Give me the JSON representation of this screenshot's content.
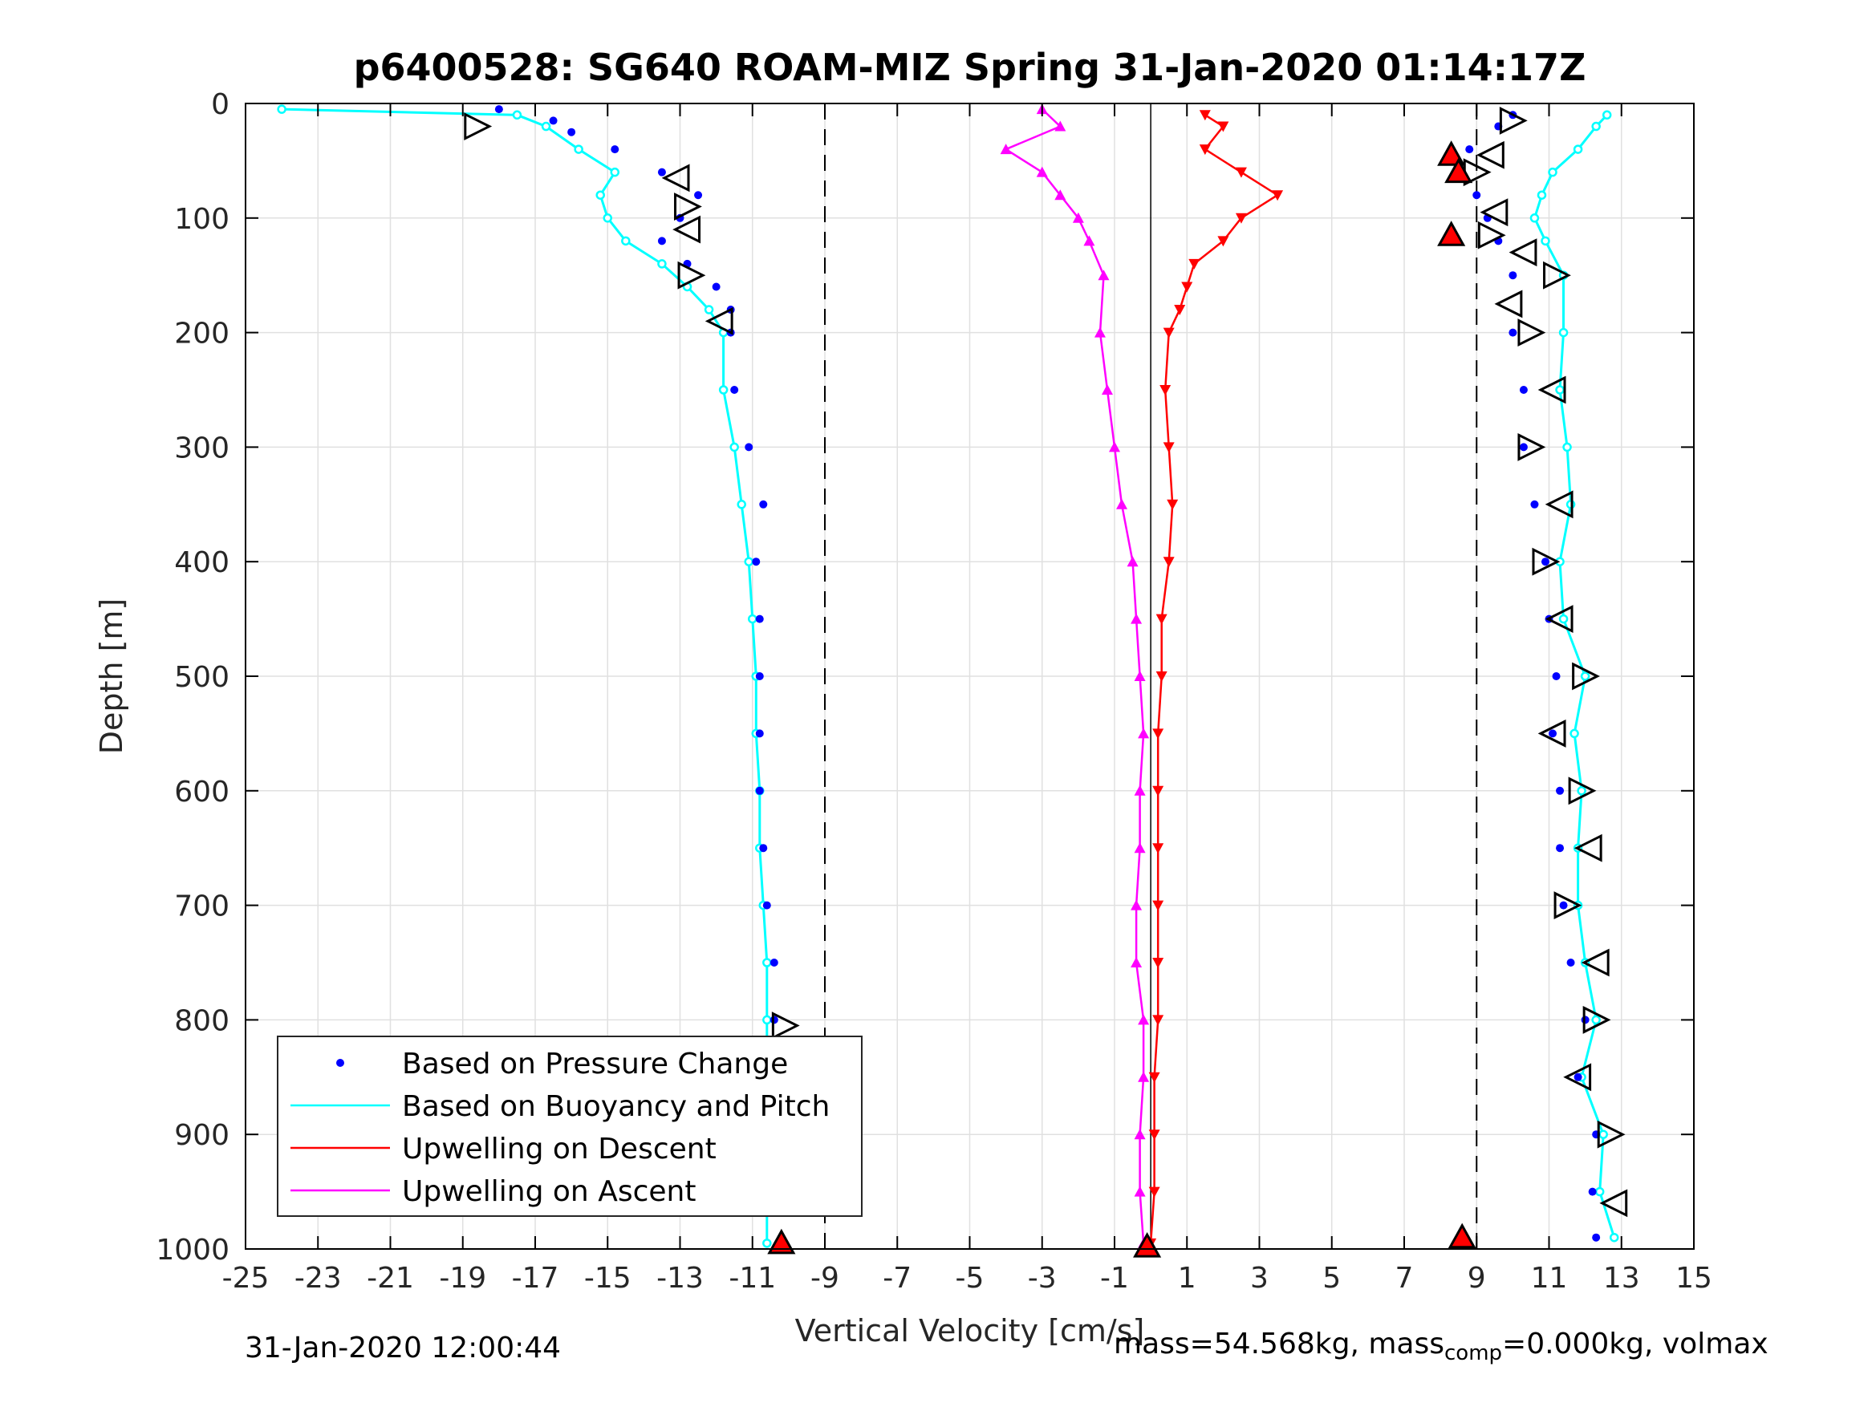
{
  "chart_data": {
    "type": "scatter",
    "title": "p6400528: SG640 ROAM-MIZ Spring 31-Jan-2020 01:14:17Z",
    "xlabel": "Vertical Velocity [cm/s]",
    "ylabel": "Depth [m]",
    "xlim": [
      -25,
      15
    ],
    "ylim": [
      0,
      1000
    ],
    "y_reversed": true,
    "grid": true,
    "x_ticks": [
      "-25",
      "-23",
      "-21",
      "-19",
      "-17",
      "-15",
      "-13",
      "-11",
      "-9",
      "-7",
      "-5",
      "-3",
      "-1",
      "1",
      "3",
      "5",
      "7",
      "9",
      "11",
      "13",
      "15"
    ],
    "y_ticks": [
      "0",
      "100",
      "200",
      "300",
      "400",
      "500",
      "600",
      "700",
      "800",
      "900",
      "1000"
    ],
    "reference_lines": {
      "dashed_x": [
        -9,
        9
      ],
      "solid_x": [
        0
      ]
    },
    "legend_position": "bottom-left",
    "legend": [
      {
        "label": "Based on Pressure Change",
        "color": "#0000ff",
        "style": "dot"
      },
      {
        "label": "Based on Buoyancy and Pitch",
        "color": "#00ffff",
        "style": "line"
      },
      {
        "label": "Upwelling on Descent",
        "color": "#ff0000",
        "style": "line"
      },
      {
        "label": "Upwelling on Ascent",
        "color": "#ff00ff",
        "style": "line"
      }
    ],
    "series": [
      {
        "name": "Based on Pressure Change",
        "color": "#0000ff",
        "descent": {
          "depth": [
            5,
            15,
            25,
            40,
            60,
            80,
            100,
            120,
            140,
            160,
            180,
            200,
            250,
            300,
            350,
            400,
            450,
            500,
            550,
            600,
            650,
            700,
            750,
            800,
            850,
            900,
            950,
            990
          ],
          "velocity": [
            -18,
            -16.5,
            -16,
            -14.8,
            -13.5,
            -12.5,
            -13,
            -13.5,
            -12.8,
            -12,
            -11.6,
            -11.6,
            -11.5,
            -11.1,
            -10.7,
            -10.9,
            -10.8,
            -10.8,
            -10.8,
            -10.8,
            -10.7,
            -10.6,
            -10.4,
            -10.4,
            -10.4,
            -10.3,
            -10.2,
            -10.2
          ]
        },
        "ascent": {
          "depth": [
            990,
            950,
            900,
            850,
            800,
            750,
            700,
            650,
            600,
            550,
            500,
            450,
            400,
            350,
            300,
            250,
            200,
            150,
            120,
            100,
            80,
            60,
            40,
            20,
            10
          ],
          "velocity": [
            12.3,
            12.2,
            12.3,
            11.8,
            12.0,
            11.6,
            11.4,
            11.3,
            11.3,
            11.1,
            11.2,
            11.0,
            10.9,
            10.6,
            10.3,
            10.3,
            10.0,
            10.0,
            9.6,
            9.3,
            9.0,
            8.6,
            8.8,
            9.6,
            10.0
          ]
        }
      },
      {
        "name": "Based on Buoyancy and Pitch",
        "color": "#00ffff",
        "descent": {
          "depth": [
            5,
            10,
            20,
            40,
            60,
            80,
            100,
            120,
            140,
            160,
            180,
            200,
            250,
            300,
            350,
            400,
            450,
            500,
            550,
            600,
            650,
            700,
            750,
            800,
            850,
            900,
            950,
            995
          ],
          "velocity": [
            -24,
            -17.5,
            -16.7,
            -15.8,
            -14.8,
            -15.2,
            -15.0,
            -14.5,
            -13.5,
            -12.8,
            -12.2,
            -11.8,
            -11.8,
            -11.5,
            -11.3,
            -11.1,
            -11.0,
            -10.9,
            -10.9,
            -10.8,
            -10.8,
            -10.7,
            -10.6,
            -10.6,
            -10.6,
            -10.6,
            -10.6,
            -10.6
          ]
        },
        "ascent": {
          "depth": [
            990,
            950,
            900,
            850,
            800,
            750,
            700,
            650,
            600,
            550,
            500,
            450,
            400,
            350,
            300,
            250,
            200,
            150,
            120,
            100,
            80,
            60,
            40,
            20,
            10
          ],
          "velocity": [
            12.8,
            12.4,
            12.5,
            11.9,
            12.3,
            12.0,
            11.8,
            11.8,
            11.9,
            11.7,
            12.0,
            11.4,
            11.3,
            11.6,
            11.5,
            11.3,
            11.4,
            11.4,
            10.9,
            10.6,
            10.8,
            11.1,
            11.8,
            12.3,
            12.6
          ]
        }
      },
      {
        "name": "Upwelling on Descent",
        "color": "#ff0000",
        "depth": [
          10,
          20,
          40,
          60,
          80,
          100,
          120,
          140,
          160,
          180,
          200,
          250,
          300,
          350,
          400,
          450,
          500,
          550,
          600,
          650,
          700,
          750,
          800,
          850,
          900,
          950,
          995
        ],
        "velocity": [
          1.5,
          2.0,
          1.5,
          2.5,
          3.5,
          2.5,
          2.0,
          1.2,
          1.0,
          0.8,
          0.5,
          0.4,
          0.5,
          0.6,
          0.5,
          0.3,
          0.3,
          0.2,
          0.2,
          0.2,
          0.2,
          0.2,
          0.2,
          0.1,
          0.1,
          0.1,
          0.0
        ]
      },
      {
        "name": "Upwelling on Ascent",
        "color": "#ff00ff",
        "depth": [
          995,
          950,
          900,
          850,
          800,
          750,
          700,
          650,
          600,
          550,
          500,
          450,
          400,
          350,
          300,
          250,
          200,
          150,
          120,
          100,
          80,
          60,
          40,
          20,
          5
        ],
        "velocity": [
          -0.2,
          -0.3,
          -0.3,
          -0.2,
          -0.2,
          -0.4,
          -0.4,
          -0.3,
          -0.3,
          -0.2,
          -0.3,
          -0.4,
          -0.5,
          -0.8,
          -1.0,
          -1.2,
          -1.4,
          -1.3,
          -1.7,
          -2.0,
          -2.5,
          -3.0,
          -4.0,
          -2.5,
          -3.0
        ]
      }
    ],
    "markers": {
      "descent_triangle": {
        "depth": [
          20,
          65,
          90,
          110,
          150,
          190,
          805
        ],
        "velocity": [
          -18.6,
          -13.1,
          -12.8,
          -12.8,
          -12.7,
          -11.9,
          -10.1
        ]
      },
      "ascent_triangle": {
        "depth": [
          15,
          45,
          60,
          95,
          115,
          130,
          150,
          175,
          200,
          250,
          300,
          350,
          400,
          450,
          500,
          550,
          600,
          650,
          700,
          750,
          800,
          850,
          900,
          960
        ],
        "velocity": [
          10.0,
          9.4,
          9.0,
          9.5,
          9.4,
          10.3,
          11.2,
          9.9,
          10.5,
          11.1,
          10.5,
          11.3,
          10.9,
          11.3,
          12.0,
          11.1,
          11.9,
          12.1,
          11.5,
          12.3,
          12.3,
          11.8,
          12.7,
          12.8
        ]
      },
      "apogee_markers": {
        "depth": [
          45,
          60,
          115,
          990,
          995,
          998
        ],
        "velocity": [
          8.3,
          8.5,
          8.3,
          8.6,
          -10.2,
          -0.1
        ]
      }
    }
  },
  "footer": {
    "timestamp": "31-Jan-2020 12:00:44",
    "mass_text": "mass=54.568kg, mass",
    "mass_sub": "comp",
    "mass_rest": "=0.000kg, volmax"
  }
}
